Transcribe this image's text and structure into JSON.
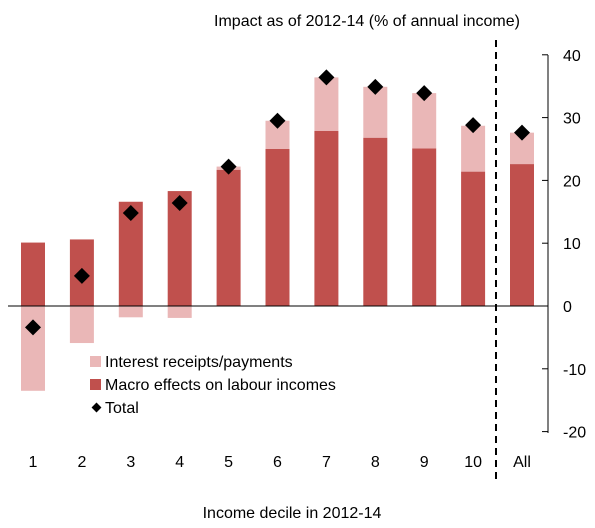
{
  "chart_data": {
    "type": "bar",
    "title": "Impact as of 2012-14 (% of annual income)",
    "xlabel": "Income decile in 2012-14",
    "ylabel": "",
    "ylim": [
      -20,
      40
    ],
    "yticks": [
      -20,
      -10,
      0,
      10,
      20,
      30,
      40
    ],
    "y_axis_side": "right",
    "stacked": true,
    "grid": false,
    "legend_position": "lower-left",
    "categories": [
      "1",
      "2",
      "3",
      "4",
      "5",
      "6",
      "7",
      "8",
      "9",
      "10",
      "All"
    ],
    "series": [
      {
        "name": "Macro effects on labour incomes",
        "kind": "bar",
        "color": "#c0504d",
        "values": [
          10.1,
          10.6,
          16.6,
          18.3,
          21.7,
          25.0,
          27.9,
          26.8,
          25.1,
          21.4,
          22.6
        ]
      },
      {
        "name": "Interest receipts/payments",
        "kind": "bar",
        "color": "#eab7b7",
        "values": [
          -13.5,
          -5.9,
          -1.8,
          -1.9,
          0.5,
          4.5,
          8.5,
          8.1,
          8.8,
          7.3,
          5.0
        ]
      },
      {
        "name": "Total",
        "kind": "marker",
        "color": "#000000",
        "values": [
          -3.4,
          4.8,
          14.8,
          16.4,
          22.2,
          29.5,
          36.4,
          34.9,
          33.9,
          28.8,
          27.6
        ]
      }
    ],
    "separator_before_category": "All"
  }
}
